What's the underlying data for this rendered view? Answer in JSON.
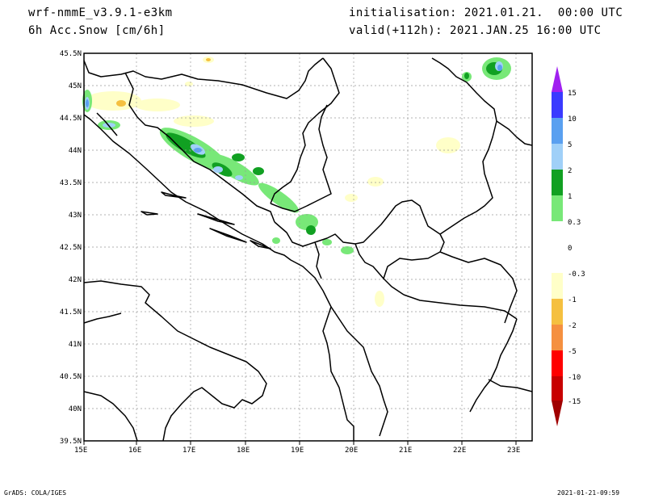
{
  "header": {
    "model": "wrf-nmmE_v3.9.1-e3km",
    "field": "6h Acc.Snow [cm/6h]",
    "init": "initialisation: 2021.01.21.  00:00 UTC",
    "valid": "valid(+112h): 2021.JAN.25 16:00 UTC"
  },
  "map": {
    "lon_ticks": [
      "15E",
      "16E",
      "17E",
      "18E",
      "19E",
      "20E",
      "21E",
      "22E",
      "23E"
    ],
    "lat_ticks": [
      "45.5N",
      "45N",
      "44.5N",
      "44N",
      "43.5N",
      "43N",
      "42.5N",
      "42N",
      "41.5N",
      "41N",
      "40.5N",
      "40N",
      "39.5N"
    ]
  },
  "legend": {
    "levels": [
      "15",
      "10",
      "5",
      "2",
      "1",
      "0.3",
      "0",
      "-0.3",
      "-1",
      "-2",
      "-5",
      "-10",
      "-15"
    ],
    "colors": [
      "#a020f0",
      "#3a3aff",
      "#5aa0f0",
      "#a0d0f8",
      "#11a022",
      "#78e878",
      "#ffffff",
      "#ffffc8",
      "#f5c040",
      "#f59040",
      "#ff0000",
      "#c80000",
      "#a00000"
    ]
  },
  "footer": {
    "left": "GrADS: COLA/IGES",
    "right": "2021-01-21-09:59"
  }
}
